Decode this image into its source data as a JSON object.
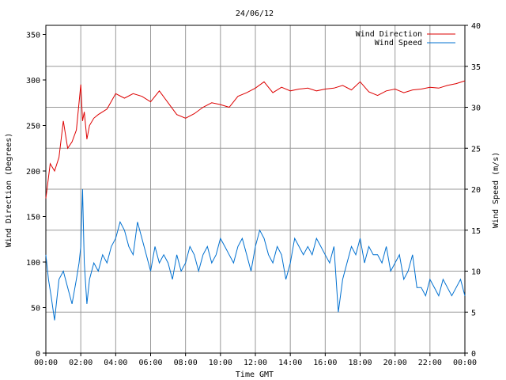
{
  "chart_data": {
    "type": "line",
    "title": "24/06/12",
    "xlabel": "Time GMT",
    "ylabel_left": "Wind Direction (Degrees)",
    "ylabel_right": "Wind Speed (m/s)",
    "x_ticks": [
      "00:00",
      "02:00",
      "04:00",
      "06:00",
      "08:00",
      "10:00",
      "12:00",
      "14:00",
      "16:00",
      "18:00",
      "20:00",
      "22:00",
      "00:00"
    ],
    "x_range_hours": [
      0,
      24
    ],
    "y_left_ticks": [
      "0",
      "50",
      "100",
      "150",
      "200",
      "250",
      "300",
      "350"
    ],
    "y_left_range": [
      0,
      360
    ],
    "y_right_ticks": [
      "0",
      "5",
      "10",
      "15",
      "20",
      "25",
      "30",
      "35",
      "40"
    ],
    "y_right_range": [
      0,
      40
    ],
    "grid": true,
    "legend_position": "top-right",
    "series": [
      {
        "name": "Wind Direction",
        "axis": "left",
        "color": "#dd0000",
        "x_hours": [
          0,
          0.25,
          0.5,
          0.75,
          1.0,
          1.25,
          1.5,
          1.75,
          2.0,
          2.1,
          2.2,
          2.35,
          2.5,
          2.75,
          3.0,
          3.5,
          4.0,
          4.5,
          5.0,
          5.5,
          6.0,
          6.5,
          7.0,
          7.5,
          8.0,
          8.5,
          9.0,
          9.5,
          10.0,
          10.5,
          11.0,
          11.5,
          12.0,
          12.5,
          13.0,
          13.5,
          14.0,
          14.5,
          15.0,
          15.5,
          16.0,
          16.5,
          17.0,
          17.5,
          18.0,
          18.5,
          19.0,
          19.5,
          20.0,
          20.5,
          21.0,
          21.5,
          22.0,
          22.5,
          23.0,
          23.5,
          24.0
        ],
        "values": [
          170,
          208,
          200,
          215,
          255,
          225,
          232,
          245,
          295,
          255,
          265,
          235,
          250,
          258,
          262,
          268,
          285,
          280,
          285,
          282,
          276,
          288,
          275,
          262,
          258,
          263,
          270,
          275,
          273,
          270,
          282,
          286,
          291,
          298,
          286,
          292,
          288,
          290,
          291,
          288,
          290,
          291,
          294,
          289,
          298,
          287,
          283,
          288,
          290,
          286,
          289,
          290,
          292,
          291,
          294,
          296,
          299
        ]
      },
      {
        "name": "Wind Speed",
        "axis": "right",
        "color": "#0070d0",
        "x_hours": [
          0,
          0.15,
          0.3,
          0.5,
          0.75,
          1.0,
          1.25,
          1.5,
          1.75,
          1.9,
          2.0,
          2.1,
          2.2,
          2.35,
          2.5,
          2.75,
          3.0,
          3.25,
          3.5,
          3.75,
          4.0,
          4.25,
          4.5,
          4.75,
          5.0,
          5.25,
          5.5,
          5.75,
          6.0,
          6.25,
          6.5,
          6.75,
          7.0,
          7.25,
          7.5,
          7.75,
          8.0,
          8.25,
          8.5,
          8.75,
          9.0,
          9.25,
          9.5,
          9.75,
          10.0,
          10.25,
          10.5,
          10.75,
          11.0,
          11.25,
          11.5,
          11.75,
          12.0,
          12.25,
          12.5,
          12.75,
          13.0,
          13.25,
          13.5,
          13.75,
          14.0,
          14.25,
          14.5,
          14.75,
          15.0,
          15.25,
          15.5,
          15.75,
          16.0,
          16.25,
          16.5,
          16.75,
          17.0,
          17.25,
          17.5,
          17.75,
          18.0,
          18.25,
          18.5,
          18.75,
          19.0,
          19.25,
          19.5,
          19.75,
          20.0,
          20.25,
          20.5,
          20.75,
          21.0,
          21.25,
          21.5,
          21.75,
          22.0,
          22.25,
          22.5,
          22.75,
          23.0,
          23.25,
          23.5,
          23.75,
          24.0
        ],
        "values": [
          12,
          9,
          7,
          4,
          9,
          10,
          8,
          6,
          9,
          11,
          13,
          20,
          11,
          6,
          9,
          11,
          10,
          12,
          11,
          13,
          14,
          16,
          15,
          13,
          12,
          16,
          14,
          12,
          10,
          13,
          11,
          12,
          11,
          9,
          12,
          10,
          11,
          13,
          12,
          10,
          12,
          13,
          11,
          12,
          14,
          13,
          12,
          11,
          13,
          14,
          12,
          10,
          13,
          15,
          14,
          12,
          11,
          13,
          12,
          9,
          11,
          14,
          13,
          12,
          13,
          12,
          14,
          13,
          12,
          11,
          13,
          5,
          9,
          11,
          13,
          12,
          14,
          11,
          13,
          12,
          12,
          11,
          13,
          10,
          11,
          12,
          9,
          10,
          12,
          8,
          8,
          7,
          9,
          8,
          7,
          9,
          8,
          7,
          8,
          9,
          7
        ]
      }
    ]
  }
}
